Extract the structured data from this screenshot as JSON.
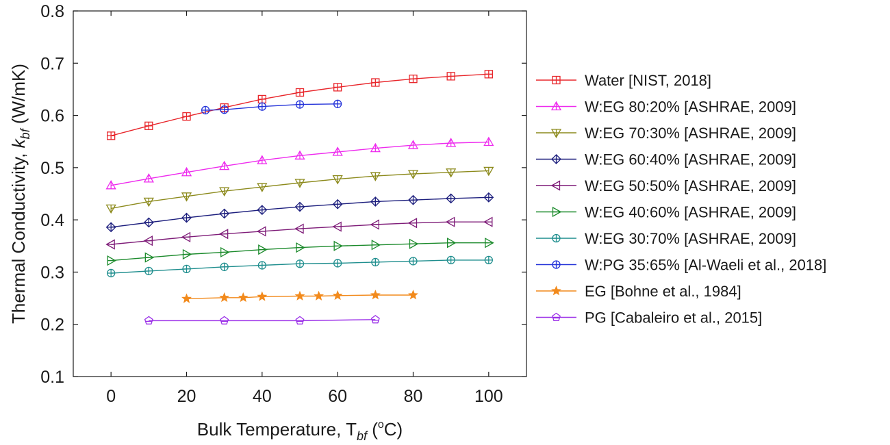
{
  "chart_data": {
    "type": "line",
    "title": "",
    "xlabel": {
      "main": "Bulk Temperature, T",
      "sub": "bf",
      "unit_pre": " (",
      "unit_sup": "o",
      "unit_post": "C)"
    },
    "ylabel": {
      "main": "Thermal Conductivity, ",
      "italic": "k",
      "sub": "bf",
      "unit": " (W/mK)"
    },
    "xlim": [
      -10,
      110
    ],
    "ylim": [
      0.1,
      0.8
    ],
    "xticks": [
      0,
      20,
      40,
      60,
      80,
      100
    ],
    "xtick_labels": [
      "0",
      "20",
      "40",
      "60",
      "80",
      "100"
    ],
    "yticks": [
      0.1,
      0.2,
      0.3,
      0.4,
      0.5,
      0.6,
      0.7,
      0.8
    ],
    "ytick_labels": [
      "0.1",
      "0.2",
      "0.3",
      "0.4",
      "0.5",
      "0.6",
      "0.7",
      "0.8"
    ],
    "grid": false,
    "legend_position": "right, outside plot",
    "series": [
      {
        "name": "Water [NIST, 2018]",
        "color": "#e8262b",
        "marker": "square-plus",
        "x": [
          0,
          10,
          20,
          30,
          40,
          50,
          60,
          70,
          80,
          90,
          100
        ],
        "y": [
          0.561,
          0.58,
          0.598,
          0.615,
          0.631,
          0.644,
          0.654,
          0.663,
          0.67,
          0.675,
          0.679
        ]
      },
      {
        "name": "W:EG 80:20% [ASHRAE, 2009]",
        "color": "#ee2bee",
        "marker": "triangle-up",
        "x": [
          0,
          10,
          20,
          30,
          40,
          50,
          60,
          70,
          80,
          90,
          100
        ],
        "y": [
          0.466,
          0.479,
          0.491,
          0.503,
          0.514,
          0.523,
          0.53,
          0.537,
          0.543,
          0.547,
          0.549
        ]
      },
      {
        "name": "W:EG 70:30% [ASHRAE, 2009]",
        "color": "#8c8a1c",
        "marker": "triangle-down",
        "x": [
          0,
          10,
          20,
          30,
          40,
          50,
          60,
          70,
          80,
          90,
          100
        ],
        "y": [
          0.422,
          0.435,
          0.445,
          0.455,
          0.463,
          0.471,
          0.478,
          0.484,
          0.488,
          0.491,
          0.494
        ]
      },
      {
        "name": "W:EG 60:40%  [ASHRAE, 2009]",
        "color": "#1c1e7d",
        "marker": "diamond-plus",
        "x": [
          0,
          10,
          20,
          30,
          40,
          50,
          60,
          70,
          80,
          90,
          100
        ],
        "y": [
          0.386,
          0.395,
          0.404,
          0.412,
          0.419,
          0.425,
          0.43,
          0.435,
          0.438,
          0.441,
          0.443
        ]
      },
      {
        "name": "W:EG 50:50%  [ASHRAE, 2009]",
        "color": "#7e1c78",
        "marker": "triangle-left",
        "x": [
          0,
          10,
          20,
          30,
          40,
          50,
          60,
          70,
          80,
          90,
          100
        ],
        "y": [
          0.353,
          0.36,
          0.367,
          0.373,
          0.378,
          0.383,
          0.387,
          0.391,
          0.394,
          0.396,
          0.396
        ]
      },
      {
        "name": "W:EG 40:60%  [ASHRAE, 2009]",
        "color": "#1b8a2b",
        "marker": "triangle-right",
        "x": [
          0,
          10,
          20,
          30,
          40,
          50,
          60,
          70,
          80,
          90,
          100
        ],
        "y": [
          0.322,
          0.328,
          0.334,
          0.338,
          0.343,
          0.347,
          0.35,
          0.352,
          0.354,
          0.356,
          0.356
        ]
      },
      {
        "name": "W:EG 30:70%  [ASHRAE, 2009]",
        "color": "#1f8e8e",
        "marker": "circle-plus",
        "x": [
          0,
          10,
          20,
          30,
          40,
          50,
          60,
          70,
          80,
          90,
          100
        ],
        "y": [
          0.298,
          0.302,
          0.306,
          0.31,
          0.313,
          0.316,
          0.317,
          0.319,
          0.321,
          0.323,
          0.323
        ]
      },
      {
        "name": "W:PG 35:65% [Al-Waeli et al., 2018]",
        "color": "#2433d9",
        "marker": "circle-plus",
        "x": [
          25,
          30,
          40,
          50,
          60
        ],
        "y": [
          0.61,
          0.611,
          0.617,
          0.621,
          0.622
        ]
      },
      {
        "name": "EG [Bohne et al., 1984]",
        "color": "#f28a1c",
        "marker": "star",
        "x": [
          20,
          30,
          35,
          40,
          50,
          55,
          60,
          70,
          80
        ],
        "y": [
          0.249,
          0.251,
          0.251,
          0.253,
          0.254,
          0.254,
          0.255,
          0.256,
          0.256
        ]
      },
      {
        "name": "PG [Cabaleiro et al., 2015]",
        "color": "#9a2ee8",
        "marker": "pentagon",
        "x": [
          10,
          30,
          50,
          70
        ],
        "y": [
          0.207,
          0.207,
          0.207,
          0.209
        ]
      }
    ]
  }
}
